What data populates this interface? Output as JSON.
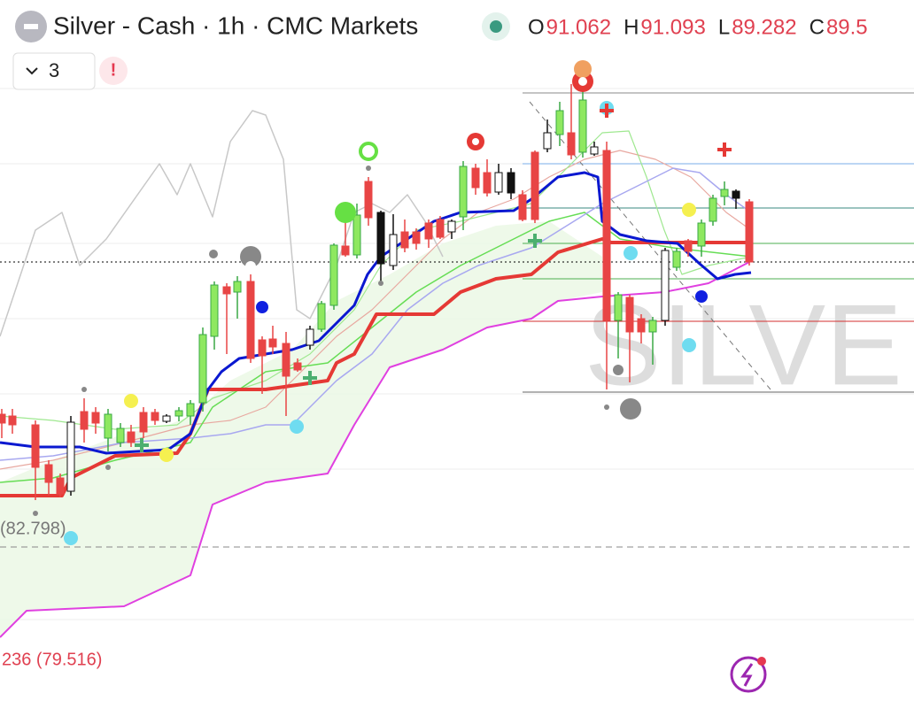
{
  "header": {
    "symbol": "Silver - Cash · 1h · CMC Markets",
    "ohlc": [
      {
        "key": "O",
        "value": "91.062"
      },
      {
        "key": "H",
        "value": "91.093"
      },
      {
        "key": "L",
        "value": "89.282"
      },
      {
        "key": "C",
        "value": "89.5"
      }
    ]
  },
  "controls": {
    "indicator_count": "3",
    "alert": "!"
  },
  "labels": {
    "left_upper": "(82.798)",
    "left_lower": "236 (79.516)",
    "watermark": "SILVE"
  }
}
